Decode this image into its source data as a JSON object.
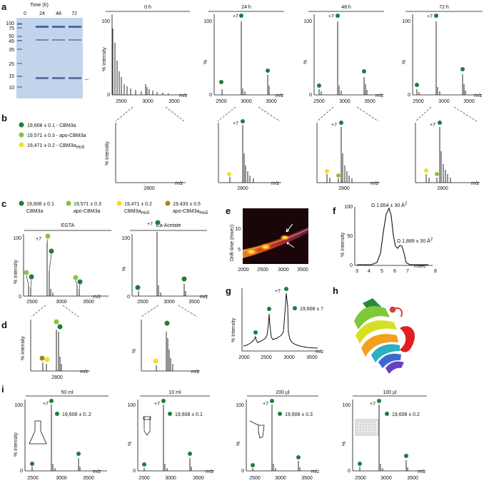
{
  "panels": {
    "a": "a",
    "b": "b",
    "c": "c",
    "d": "d",
    "e": "e",
    "f": "f",
    "g": "g",
    "h": "h",
    "i": "i"
  },
  "colors": {
    "dark_green": "#1e7e3a",
    "light_green": "#86c440",
    "yellow": "#f2e01c",
    "olive": "#9c8a1a"
  },
  "gel": {
    "title": "Time (h)",
    "lanes": [
      "0",
      "24",
      "48",
      "72"
    ],
    "markers": [
      "100",
      "75",
      "50",
      "45",
      "35",
      "25",
      "15",
      "10"
    ],
    "arrow": "←"
  },
  "a": {
    "spectra": [
      {
        "title": "0 h",
        "ylabel": "% intensity",
        "xticks": [
          "2500",
          "3000",
          "3500"
        ],
        "xunit": "m/z",
        "ytop": "100",
        "yzero": "0",
        "charge": ""
      },
      {
        "title": "24 h",
        "ylabel": "%",
        "xticks": [
          "2500",
          "3000",
          "3500"
        ],
        "xunit": "m/z",
        "ytop": "100",
        "yzero": "0",
        "charge": "+7"
      },
      {
        "title": "48 h",
        "ylabel": "%",
        "xticks": [
          "2500",
          "3000",
          "3500"
        ],
        "xunit": "m/z",
        "ytop": "100",
        "yzero": "0",
        "charge": "+7"
      },
      {
        "title": "72 h",
        "ylabel": "%",
        "xticks": [
          "2500",
          "3000",
          "3500"
        ],
        "xunit": "m/z",
        "ytop": "100",
        "yzero": "0",
        "charge": "+7"
      }
    ],
    "zooms": [
      {
        "ylabel": "% intensity",
        "xtick": "2800",
        "xunit": "m/z",
        "charge": ""
      },
      {
        "ylabel": "",
        "xtick": "2800",
        "xunit": "m/z",
        "charge": "+7"
      },
      {
        "ylabel": "",
        "xtick": "2800",
        "xunit": "m/z",
        "charge": "+7"
      },
      {
        "ylabel": "",
        "xtick": "2800",
        "xunit": "m/z",
        "charge": "+7"
      }
    ]
  },
  "b_legend": [
    {
      "text": "19,608 ± 0.1 - CBM3a",
      "sub": "",
      "color": "#1e7e3a"
    },
    {
      "text": "19,571 ± 0.3 - apo-CBM3a",
      "sub": "",
      "color": "#86c440"
    },
    {
      "text": "19,471 ± 0.2 - CBM3a",
      "sub": "His5",
      "color": "#f2e01c"
    }
  ],
  "c_legend": [
    {
      "mass": "19,608 ± 0.1",
      "name": "CBM3a",
      "sub": "",
      "color": "#1e7e3a"
    },
    {
      "mass": "19,571 ± 0.3",
      "name": "apo-CBM3a",
      "sub": "",
      "color": "#86c440"
    },
    {
      "mass": "19,471 ± 0.2",
      "name": "CBM3a",
      "sub": "His5",
      "color": "#f2e01c"
    },
    {
      "mass": "19,433 ± 0.5",
      "name": "apo-CBM3a",
      "sub": "His5",
      "color": "#9c8a1a"
    }
  ],
  "c": {
    "egta": {
      "title": "EGTA",
      "ylabel": "% intensity",
      "ytop": "100",
      "yzero": "0",
      "charge": "+7",
      "xticks": [
        "2500",
        "3000",
        "3500"
      ],
      "xunit": "m/z"
    },
    "caac": {
      "title": "Ca-Acetate",
      "ylabel": "%",
      "ytop": "100",
      "yzero": "0",
      "charge": "+7",
      "xticks": [
        "2500",
        "3000",
        "3500"
      ],
      "xunit": "m/z"
    }
  },
  "d": {
    "left": {
      "ylabel": "% intensity",
      "xtick": "2800",
      "xunit": "m/z"
    },
    "right": {
      "ylabel": "%",
      "xtick": "2800",
      "xunit": "m/z"
    }
  },
  "e": {
    "ylabel": "Drift time (msec)",
    "yticks": [
      "5",
      "10"
    ],
    "xticks": [
      "2000",
      "2500",
      "3000",
      "3500"
    ]
  },
  "f": {
    "ylabel": "% Intensity",
    "xticks": [
      "3",
      "4",
      "5",
      "6",
      "7",
      "8"
    ],
    "xunit": "msec",
    "ytop": "100",
    "ymid": "50",
    "yzero": "0",
    "ccs1": "Ω 1,654 ± 30  Å",
    "ccs2": "Ω 1,889 ± 30  Å",
    "sup": "2"
  },
  "g": {
    "ylabel": "% Intensity",
    "charge": "+7",
    "mass": "19,608 ± 7",
    "xticks": [
      "2000",
      "2500",
      "3000",
      "3500"
    ],
    "xunit": "m/z"
  },
  "i": {
    "spectra": [
      {
        "title": "50 ml",
        "ylabel": "% intensity",
        "mass": "19,608 ± 0..2",
        "charge": "+7",
        "ytop": "100",
        "yzero": "0",
        "xticks": [
          "2500",
          "3000",
          "3500"
        ],
        "xunit": "m/z"
      },
      {
        "title": "10 ml",
        "ylabel": "%",
        "mass": "19,608 ± 0.1",
        "charge": "+7",
        "ytop": "100",
        "yzero": "0",
        "xticks": [
          "2500",
          "3000",
          "3500"
        ],
        "xunit": "m/z"
      },
      {
        "title": "200 µl",
        "ylabel": "%",
        "mass": "19,608 ± 0.3",
        "charge": "+7",
        "ytop": "100",
        "yzero": "0",
        "xticks": [
          "2500",
          "3000",
          "3500"
        ],
        "xunit": "m/z"
      },
      {
        "title": "100 µl",
        "ylabel": "%",
        "mass": "19,608 ± 0.2",
        "charge": "+7",
        "ytop": "100",
        "yzero": "0",
        "xticks": [
          "2500",
          "3000",
          "3500"
        ],
        "xunit": "m/z"
      }
    ]
  }
}
